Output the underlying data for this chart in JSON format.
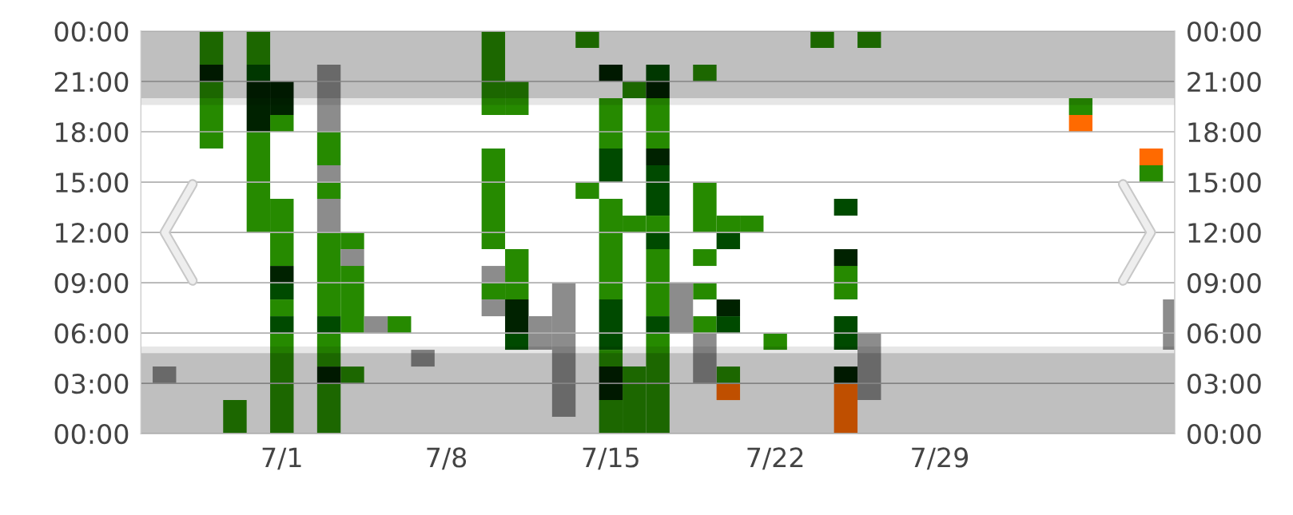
{
  "chart_data": {
    "type": "bar",
    "categories": [
      null,
      null,
      null,
      null,
      null,
      null,
      "7/1",
      null,
      null,
      null,
      null,
      null,
      null,
      "7/8",
      null,
      null,
      null,
      null,
      null,
      null,
      "7/15",
      null,
      null,
      null,
      null,
      null,
      null,
      "7/22",
      null,
      null,
      null,
      null,
      null,
      null,
      "7/29",
      null,
      null,
      null,
      null,
      null,
      null,
      null,
      null,
      null,
      null
    ],
    "series": [
      {
        "color": "#268a00",
        "base": [
          null,
          null,
          null,
          17,
          0,
          12,
          0,
          null,
          0,
          3,
          null,
          6,
          null,
          null,
          null,
          8,
          8,
          null,
          null,
          14,
          0,
          0,
          0,
          null,
          6,
          3,
          12,
          5,
          null,
          23,
          8,
          23,
          null,
          null,
          null,
          null,
          null,
          null,
          null,
          null,
          19,
          null,
          null,
          15,
          null
        ],
        "values": [
          null,
          null,
          null,
          4,
          2,
          6,
          6,
          null,
          3,
          1,
          null,
          1,
          null,
          null,
          null,
          1,
          3,
          null,
          null,
          1,
          2,
          4,
          6,
          null,
          1,
          1,
          1,
          1,
          null,
          1,
          2,
          1,
          null,
          null,
          null,
          null,
          null,
          null,
          null,
          null,
          1,
          null,
          null,
          1,
          null
        ]
      },
      {
        "color": "#268a00",
        "base": [
          null,
          null,
          null,
          22,
          null,
          22,
          7,
          null,
          4,
          6,
          null,
          null,
          null,
          null,
          null,
          11,
          19,
          null,
          null,
          23,
          4,
          12,
          7,
          null,
          8,
          12,
          null,
          null,
          null,
          null,
          null,
          null,
          null,
          null,
          null,
          null,
          null,
          null,
          null,
          null,
          null,
          null,
          null,
          null,
          null
        ],
        "values": [
          null,
          null,
          null,
          2,
          null,
          2,
          1,
          null,
          2,
          4,
          null,
          null,
          null,
          null,
          null,
          6,
          2,
          null,
          null,
          1,
          1,
          1,
          4,
          null,
          1,
          1,
          null,
          null,
          null,
          null,
          null,
          null,
          null,
          null,
          null,
          null,
          null,
          null,
          null,
          null,
          null,
          null,
          null,
          null,
          null
        ]
      },
      {
        "color": "#268a00",
        "base": [
          null,
          null,
          null,
          null,
          null,
          null,
          10,
          null,
          7,
          11,
          null,
          null,
          null,
          null,
          null,
          19,
          null,
          null,
          null,
          null,
          8,
          20,
          12,
          null,
          10,
          null,
          null,
          null,
          null,
          null,
          null,
          null,
          null,
          null,
          null,
          null,
          null,
          null,
          null,
          null,
          null,
          null,
          null,
          null,
          null
        ],
        "values": [
          null,
          null,
          null,
          null,
          null,
          null,
          4,
          null,
          5,
          1,
          null,
          null,
          null,
          null,
          null,
          5,
          null,
          null,
          null,
          null,
          6,
          1,
          1,
          null,
          1,
          null,
          null,
          null,
          null,
          null,
          null,
          null,
          null,
          null,
          null,
          null,
          null,
          null,
          null,
          null,
          null,
          null,
          null,
          null,
          null
        ]
      },
      {
        "color": "#268a00",
        "base": [
          null,
          null,
          null,
          null,
          null,
          null,
          18,
          null,
          14,
          null,
          null,
          null,
          null,
          null,
          null,
          null,
          null,
          null,
          null,
          null,
          17,
          null,
          17,
          null,
          12,
          null,
          null,
          null,
          null,
          null,
          null,
          null,
          null,
          null,
          null,
          null,
          null,
          null,
          null,
          null,
          null,
          null,
          null,
          null,
          null
        ],
        "values": [
          null,
          null,
          null,
          null,
          null,
          null,
          1,
          null,
          1,
          null,
          null,
          null,
          null,
          null,
          null,
          null,
          null,
          null,
          null,
          null,
          3,
          null,
          3,
          null,
          3,
          null,
          null,
          null,
          null,
          null,
          null,
          null,
          null,
          null,
          null,
          null,
          null,
          null,
          null,
          null,
          null,
          null,
          null,
          null,
          null
        ]
      },
      {
        "color": "#268a00",
        "base": [
          null,
          null,
          null,
          null,
          null,
          null,
          null,
          null,
          16,
          null,
          null,
          null,
          null,
          null,
          null,
          null,
          null,
          null,
          null,
          null,
          null,
          null,
          null,
          null,
          21,
          null,
          null,
          null,
          null,
          null,
          null,
          null,
          null,
          null,
          null,
          null,
          null,
          null,
          null,
          null,
          null,
          null,
          null,
          null,
          null
        ],
        "values": [
          null,
          null,
          null,
          null,
          null,
          null,
          null,
          null,
          2,
          null,
          null,
          null,
          null,
          null,
          null,
          null,
          null,
          null,
          null,
          null,
          null,
          null,
          null,
          null,
          1,
          null,
          null,
          null,
          null,
          null,
          null,
          null,
          null,
          null,
          null,
          null,
          null,
          null,
          null,
          null,
          null,
          null,
          null,
          null,
          null
        ]
      },
      {
        "color": "#002200",
        "base": [
          null,
          null,
          null,
          21,
          null,
          18,
          9,
          null,
          3,
          null,
          null,
          null,
          null,
          null,
          null,
          null,
          6,
          null,
          null,
          null,
          2,
          null,
          16,
          null,
          null,
          7,
          null,
          null,
          null,
          null,
          3,
          null,
          null,
          null,
          null,
          null,
          null,
          null,
          null,
          null,
          null,
          null,
          null,
          null,
          null
        ],
        "values": [
          null,
          null,
          null,
          1,
          null,
          3,
          1,
          null,
          1,
          null,
          null,
          null,
          null,
          null,
          null,
          null,
          2,
          null,
          null,
          null,
          2,
          null,
          1,
          null,
          null,
          1,
          null,
          null,
          null,
          null,
          1,
          null,
          null,
          null,
          null,
          null,
          null,
          null,
          null,
          null,
          null,
          null,
          null,
          null,
          null
        ]
      },
      {
        "color": "#002200",
        "base": [
          null,
          null,
          null,
          null,
          null,
          null,
          19,
          null,
          null,
          null,
          null,
          null,
          null,
          null,
          null,
          null,
          null,
          null,
          null,
          null,
          21,
          null,
          20,
          null,
          null,
          null,
          null,
          null,
          null,
          null,
          10,
          null,
          null,
          null,
          null,
          null,
          null,
          null,
          null,
          null,
          null,
          null,
          null,
          null,
          null
        ],
        "values": [
          null,
          null,
          null,
          null,
          null,
          null,
          2,
          null,
          null,
          null,
          null,
          null,
          null,
          null,
          null,
          null,
          null,
          null,
          null,
          null,
          1,
          null,
          1,
          null,
          null,
          null,
          null,
          null,
          null,
          null,
          1,
          null,
          null,
          null,
          null,
          null,
          null,
          null,
          null,
          null,
          null,
          null,
          null,
          null,
          null
        ]
      },
      {
        "color": "#004a00",
        "base": [
          null,
          null,
          null,
          null,
          null,
          21,
          6,
          null,
          6,
          null,
          null,
          null,
          null,
          null,
          null,
          null,
          5,
          null,
          null,
          null,
          5,
          null,
          6,
          null,
          null,
          6,
          null,
          null,
          null,
          null,
          5,
          null,
          null,
          null,
          null,
          null,
          null,
          null,
          null,
          null,
          null,
          null,
          null,
          null,
          null
        ],
        "values": [
          null,
          null,
          null,
          null,
          null,
          1,
          1,
          null,
          1,
          null,
          null,
          null,
          null,
          null,
          null,
          null,
          1,
          null,
          null,
          null,
          3,
          null,
          1,
          null,
          null,
          1,
          null,
          null,
          null,
          null,
          2,
          null,
          null,
          null,
          null,
          null,
          null,
          null,
          null,
          null,
          null,
          null,
          null,
          null,
          null
        ]
      },
      {
        "color": "#004a00",
        "base": [
          null,
          null,
          null,
          null,
          null,
          null,
          8,
          null,
          null,
          null,
          null,
          null,
          null,
          null,
          null,
          null,
          null,
          null,
          null,
          null,
          15,
          null,
          11,
          null,
          null,
          11,
          null,
          null,
          null,
          null,
          13,
          null,
          null,
          null,
          null,
          null,
          null,
          null,
          null,
          null,
          null,
          null,
          null,
          null,
          null
        ],
        "values": [
          null,
          null,
          null,
          null,
          null,
          null,
          1,
          null,
          null,
          null,
          null,
          null,
          null,
          null,
          null,
          null,
          null,
          null,
          null,
          null,
          2,
          null,
          1,
          null,
          null,
          1,
          null,
          null,
          null,
          null,
          1,
          null,
          null,
          null,
          null,
          null,
          null,
          null,
          null,
          null,
          null,
          null,
          null,
          null,
          null
        ]
      },
      {
        "color": "#004a00",
        "base": [
          null,
          null,
          null,
          null,
          null,
          null,
          null,
          null,
          null,
          null,
          null,
          null,
          null,
          null,
          null,
          null,
          null,
          null,
          null,
          null,
          null,
          null,
          13,
          null,
          null,
          null,
          null,
          null,
          null,
          null,
          null,
          null,
          null,
          null,
          null,
          null,
          null,
          null,
          null,
          null,
          null,
          null,
          null,
          null,
          null
        ],
        "values": [
          null,
          null,
          null,
          null,
          null,
          null,
          null,
          null,
          null,
          null,
          null,
          null,
          null,
          null,
          null,
          null,
          null,
          null,
          null,
          null,
          null,
          null,
          3,
          null,
          null,
          null,
          null,
          null,
          null,
          null,
          null,
          null,
          null,
          null,
          null,
          null,
          null,
          null,
          null,
          null,
          null,
          null,
          null,
          null,
          null
        ]
      },
      {
        "color": "#004a00",
        "base": [
          null,
          null,
          null,
          null,
          null,
          null,
          null,
          null,
          null,
          null,
          null,
          null,
          null,
          null,
          null,
          null,
          null,
          null,
          null,
          null,
          null,
          null,
          21,
          null,
          null,
          null,
          null,
          null,
          null,
          null,
          null,
          null,
          null,
          null,
          null,
          null,
          null,
          null,
          null,
          null,
          null,
          null,
          null,
          null,
          null
        ],
        "values": [
          null,
          null,
          null,
          null,
          null,
          null,
          null,
          null,
          null,
          null,
          null,
          null,
          null,
          null,
          null,
          null,
          null,
          null,
          null,
          null,
          null,
          null,
          1,
          null,
          null,
          null,
          null,
          null,
          null,
          null,
          null,
          null,
          null,
          null,
          null,
          null,
          null,
          null,
          null,
          null,
          null,
          null,
          null,
          null,
          null
        ]
      },
      {
        "color": "#8c8c8c",
        "base": [
          null,
          3,
          null,
          null,
          null,
          null,
          null,
          null,
          12,
          10,
          6,
          null,
          4,
          null,
          null,
          7,
          null,
          5,
          1,
          null,
          null,
          null,
          null,
          6,
          3,
          null,
          null,
          null,
          null,
          null,
          null,
          2,
          null,
          null,
          null,
          null,
          null,
          null,
          null,
          null,
          null,
          null,
          null,
          null,
          5
        ],
        "values": [
          null,
          1,
          null,
          null,
          null,
          null,
          null,
          null,
          2,
          1,
          1,
          null,
          1,
          null,
          null,
          1,
          null,
          2,
          8,
          null,
          null,
          null,
          null,
          3,
          3,
          null,
          null,
          null,
          null,
          null,
          null,
          4,
          null,
          null,
          null,
          null,
          null,
          null,
          null,
          null,
          null,
          null,
          null,
          null,
          3
        ]
      },
      {
        "color": "#8c8c8c",
        "base": [
          null,
          null,
          null,
          null,
          null,
          null,
          null,
          null,
          15,
          null,
          null,
          null,
          null,
          null,
          null,
          9,
          null,
          null,
          null,
          null,
          null,
          null,
          null,
          null,
          null,
          null,
          null,
          null,
          null,
          null,
          null,
          null,
          null,
          null,
          null,
          null,
          null,
          null,
          null,
          null,
          null,
          null,
          null,
          null,
          null
        ],
        "values": [
          null,
          null,
          null,
          null,
          null,
          null,
          null,
          null,
          1,
          null,
          null,
          null,
          null,
          null,
          null,
          1,
          null,
          null,
          null,
          null,
          null,
          null,
          null,
          null,
          null,
          null,
          null,
          null,
          null,
          null,
          null,
          null,
          null,
          null,
          null,
          null,
          null,
          null,
          null,
          null,
          null,
          null,
          null,
          null,
          null
        ]
      },
      {
        "color": "#8c8c8c",
        "base": [
          null,
          null,
          null,
          null,
          null,
          null,
          null,
          null,
          18,
          null,
          null,
          null,
          null,
          null,
          null,
          null,
          null,
          null,
          null,
          null,
          null,
          null,
          null,
          null,
          null,
          null,
          null,
          null,
          null,
          null,
          null,
          null,
          null,
          null,
          null,
          null,
          null,
          null,
          null,
          null,
          null,
          null,
          null,
          null,
          null
        ],
        "values": [
          null,
          null,
          null,
          null,
          null,
          null,
          null,
          null,
          4,
          null,
          null,
          null,
          null,
          null,
          null,
          null,
          null,
          null,
          null,
          null,
          null,
          null,
          null,
          null,
          null,
          null,
          null,
          null,
          null,
          null,
          null,
          null,
          null,
          null,
          null,
          null,
          null,
          null,
          null,
          null,
          null,
          null,
          null,
          null,
          null
        ]
      },
      {
        "color": "#ff6a00",
        "base": [
          null,
          null,
          null,
          null,
          null,
          null,
          null,
          null,
          null,
          null,
          null,
          null,
          null,
          null,
          null,
          null,
          null,
          null,
          null,
          null,
          null,
          null,
          null,
          null,
          null,
          2,
          null,
          null,
          null,
          null,
          0,
          null,
          null,
          null,
          null,
          null,
          null,
          null,
          null,
          null,
          18,
          null,
          null,
          16,
          null
        ],
        "values": [
          null,
          null,
          null,
          null,
          null,
          null,
          null,
          null,
          null,
          null,
          null,
          null,
          null,
          null,
          null,
          null,
          null,
          null,
          null,
          null,
          null,
          null,
          null,
          null,
          null,
          1,
          null,
          null,
          null,
          null,
          3,
          null,
          null,
          null,
          null,
          null,
          null,
          null,
          null,
          null,
          1,
          null,
          null,
          1,
          null
        ]
      }
    ],
    "ylim": [
      0,
      24
    ],
    "yticks": [
      {
        "value": 0,
        "label": "00:00"
      },
      {
        "value": 3,
        "label": "03:00"
      },
      {
        "value": 6,
        "label": "06:00"
      },
      {
        "value": 9,
        "label": "09:00"
      },
      {
        "value": 12,
        "label": "12:00"
      },
      {
        "value": 15,
        "label": "15:00"
      },
      {
        "value": 18,
        "label": "18:00"
      },
      {
        "value": 21,
        "label": "21:00"
      },
      {
        "value": 24,
        "label": "00:00"
      }
    ],
    "y2lim": [
      0,
      24
    ],
    "y2ticks": [
      {
        "value": 0,
        "label": "00:00"
      },
      {
        "value": 3,
        "label": "03:00"
      },
      {
        "value": 6,
        "label": "06:00"
      },
      {
        "value": 9,
        "label": "09:00"
      },
      {
        "value": 12,
        "label": "12:00"
      },
      {
        "value": 15,
        "label": "15:00"
      },
      {
        "value": 18,
        "label": "18:00"
      },
      {
        "value": 21,
        "label": "21:00"
      },
      {
        "value": 24,
        "label": "00:00"
      }
    ],
    "bands": [
      {
        "axis": "y",
        "from": 0,
        "to": 4.8,
        "color": "#bfbfbf"
      },
      {
        "axis": "y",
        "from": 4.8,
        "to": 5.2,
        "color": "#e6e6e6"
      },
      {
        "axis": "y",
        "from": 19.6,
        "to": 20.0,
        "color": "#e6e6e6"
      },
      {
        "axis": "y",
        "from": 20.0,
        "to": 24,
        "color": "#bfbfbf"
      }
    ],
    "grid": "y"
  }
}
